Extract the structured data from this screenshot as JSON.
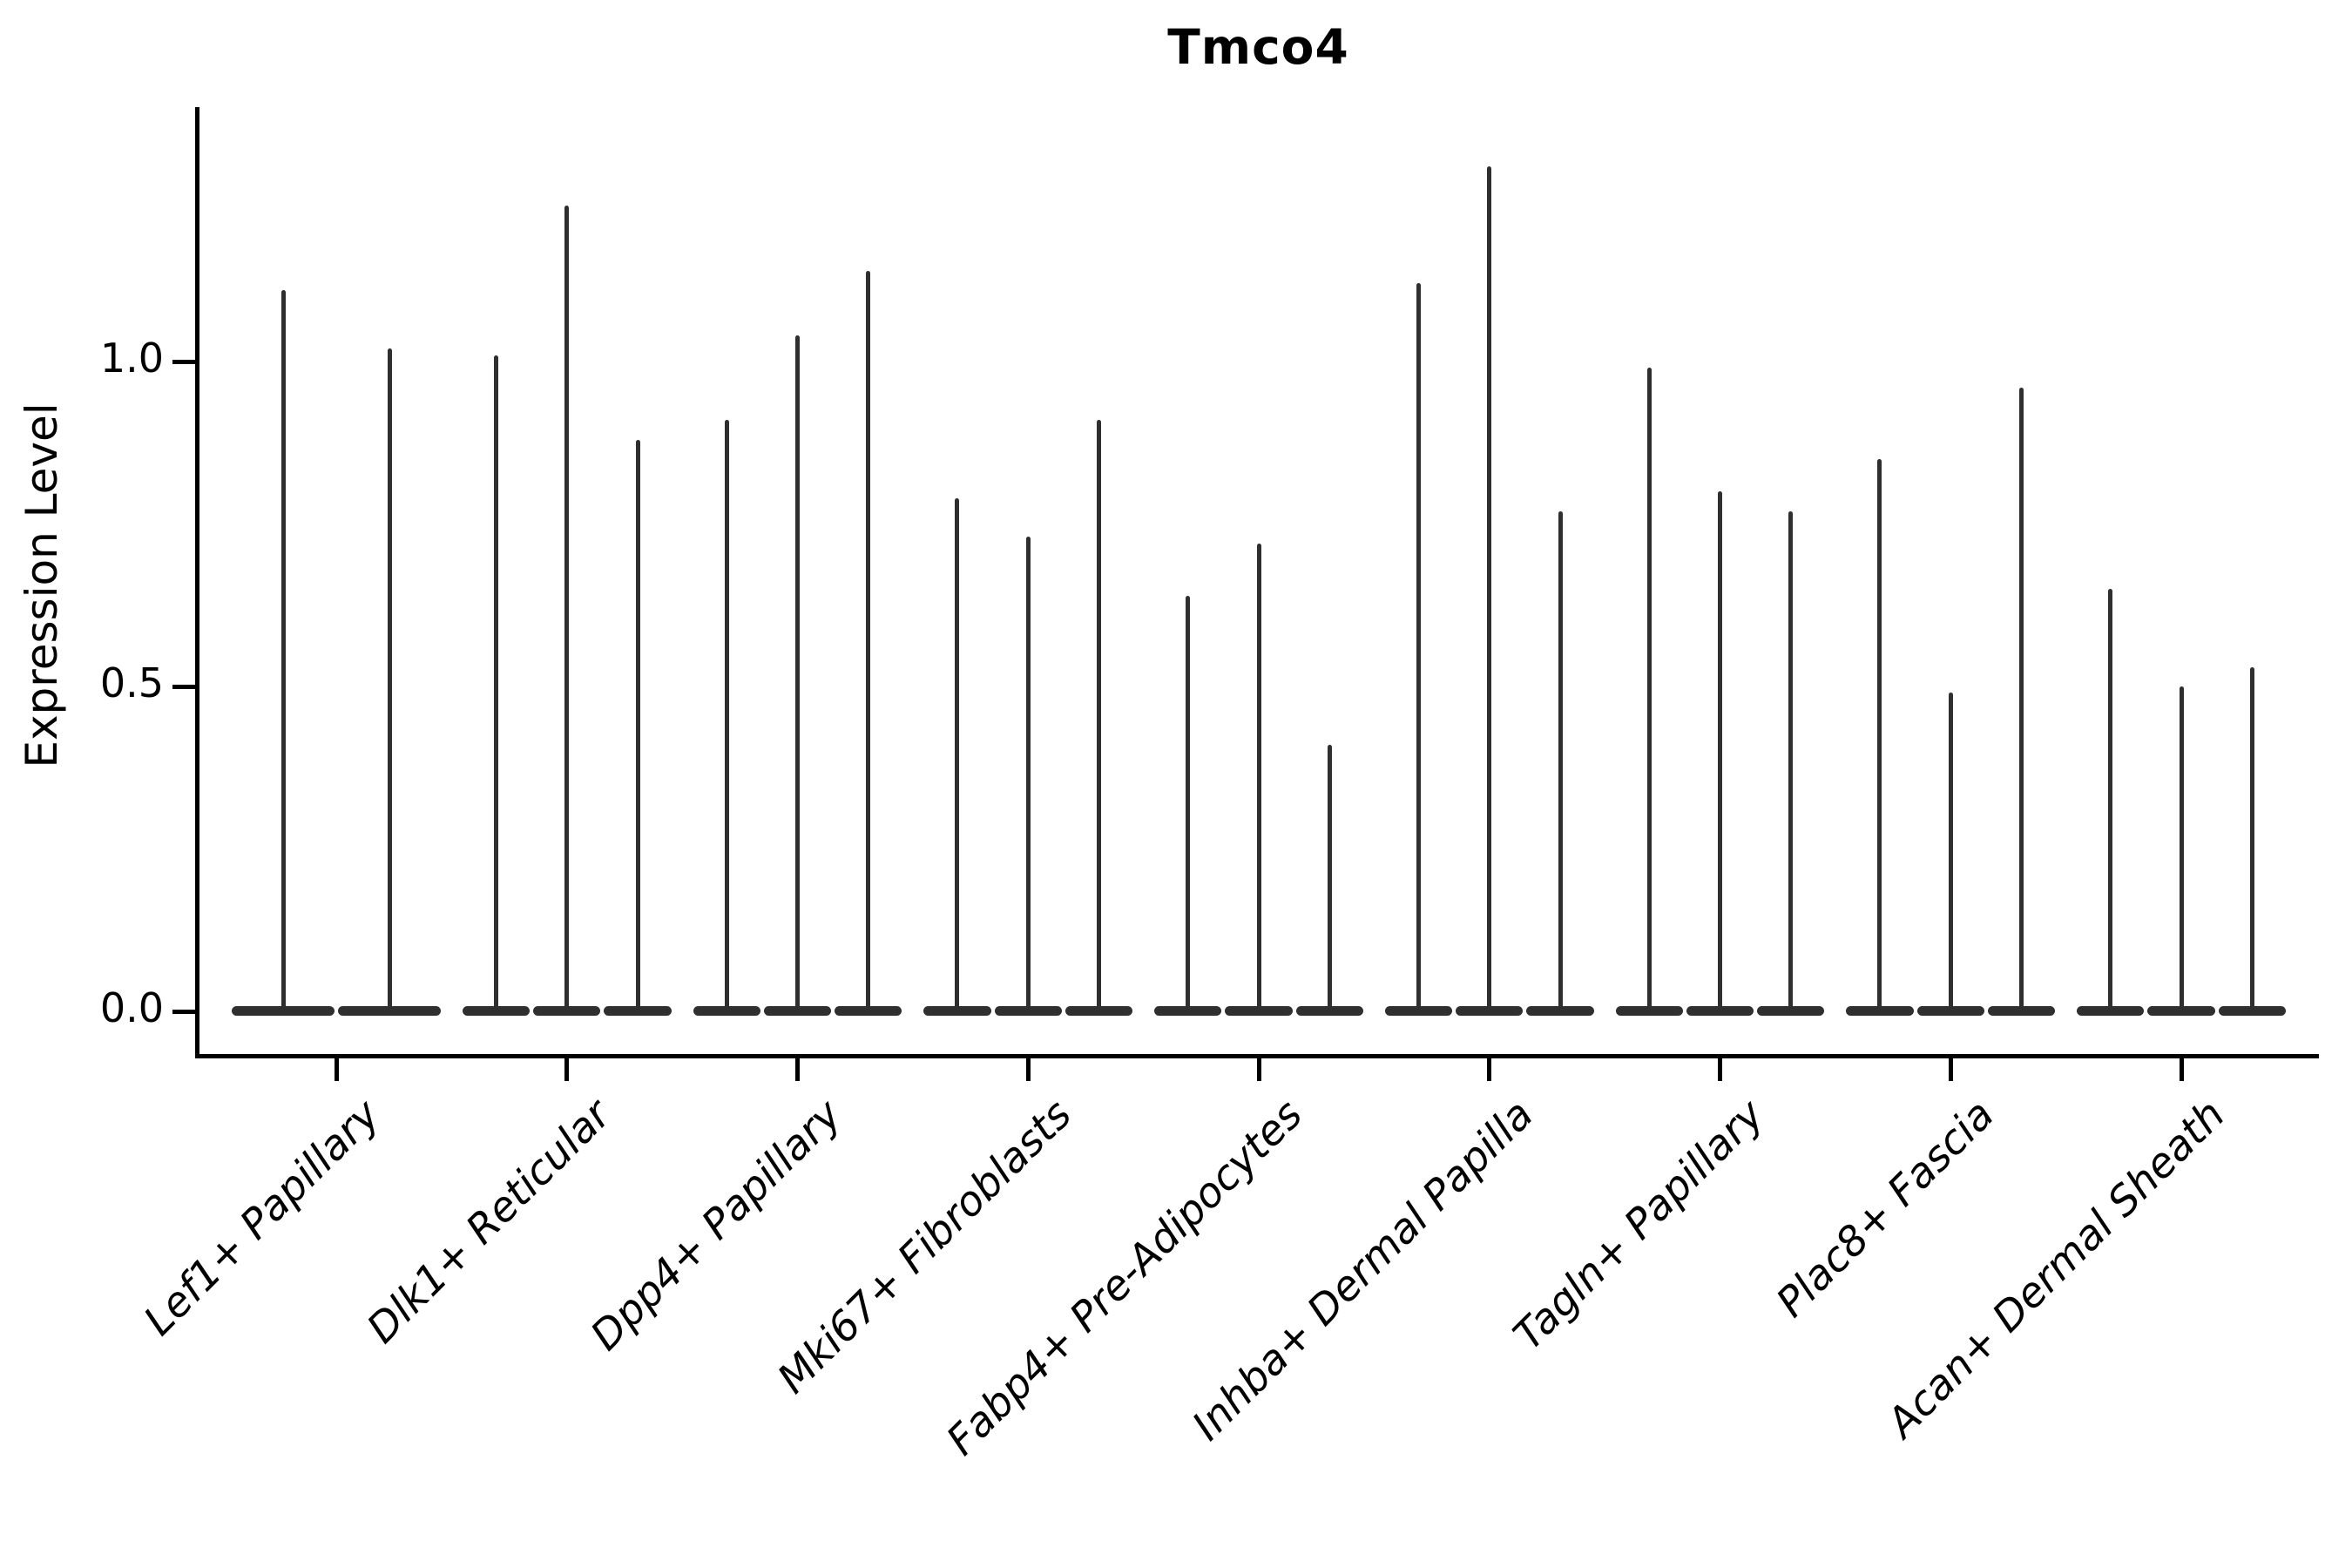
{
  "title": "Tmco4",
  "y_axis": {
    "label": "Expression Level",
    "ticks": [
      "0.0",
      "0.5",
      "1.0"
    ],
    "tick_values": [
      0.0,
      0.5,
      1.0
    ]
  },
  "colors": {
    "violin": "#2f2f2f",
    "spine": "#000000",
    "text": "#000000",
    "background": "#ffffff"
  },
  "chart_data": {
    "type": "violin",
    "title": "Tmco4",
    "xlabel": "",
    "ylabel": "Expression Level",
    "ylim": [
      -0.07,
      1.4
    ],
    "yticks": [
      0.0,
      0.5,
      1.0
    ],
    "grid": false,
    "legend": "none",
    "note": "Collapsed violins: bulk of density at 0 with thin spike up to max expression per violin",
    "categories": [
      "Lef1+ Papillary",
      "Dlk1+ Reticular",
      "Dpp4+ Papillary",
      "Mki67+ Fibroblasts",
      "Fabp4+ Pre-Adipocytes",
      "Inhba+ Dermal Papilla",
      "Tagln+ Papillary",
      "Plac8+ Fascia",
      "Acan+ Dermal Sheath"
    ],
    "series": [
      {
        "category": "Lef1+ Papillary",
        "violin_max_values": [
          1.11,
          1.02
        ],
        "baseline_value": 0.0
      },
      {
        "category": "Dlk1+ Reticular",
        "violin_max_values": [
          1.01,
          1.24,
          0.88
        ],
        "baseline_value": 0.0
      },
      {
        "category": "Dpp4+ Papillary",
        "violin_max_values": [
          0.91,
          1.04,
          1.14
        ],
        "baseline_value": 0.0
      },
      {
        "category": "Mki67+ Fibroblasts",
        "violin_max_values": [
          0.79,
          0.73,
          0.91
        ],
        "baseline_value": 0.0
      },
      {
        "category": "Fabp4+ Pre-Adipocytes",
        "violin_max_values": [
          0.64,
          0.72,
          0.41
        ],
        "baseline_value": 0.0
      },
      {
        "category": "Inhba+ Dermal Papilla",
        "violin_max_values": [
          1.12,
          1.3,
          0.77
        ],
        "baseline_value": 0.0
      },
      {
        "category": "Tagln+ Papillary",
        "violin_max_values": [
          0.99,
          0.8,
          0.77
        ],
        "baseline_value": 0.0
      },
      {
        "category": "Plac8+ Fascia",
        "violin_max_values": [
          0.85,
          0.49,
          0.96
        ],
        "baseline_value": 0.0
      },
      {
        "category": "Acan+ Dermal Sheath",
        "violin_max_values": [
          0.65,
          0.5,
          0.53
        ],
        "baseline_value": 0.0
      }
    ]
  }
}
